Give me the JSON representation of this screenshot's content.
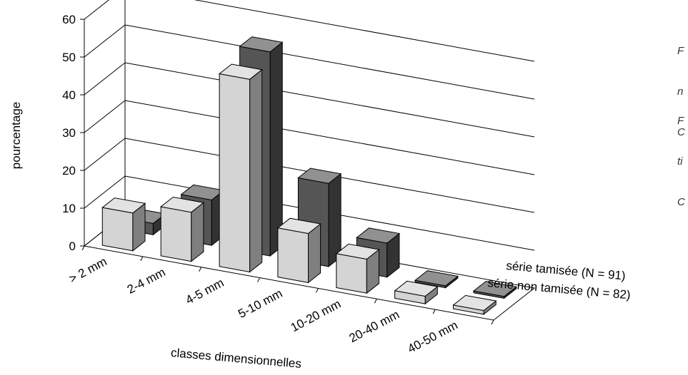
{
  "chart_data": {
    "type": "bar",
    "xlabel": "classes dimensionnelles",
    "ylabel": "pourcentage",
    "ylim": [
      0,
      60
    ],
    "yticks": [
      0,
      10,
      20,
      30,
      40,
      50,
      60
    ],
    "categories": [
      "> 2 mm",
      "2-4 mm",
      "4-5 mm",
      "5-10 mm",
      "10-20 mm",
      "20-40 mm",
      "40-50 mm"
    ],
    "series": [
      {
        "name": "série tamisée (N = 91)",
        "values": [
          3,
          12,
          54,
          22,
          9,
          0.5,
          0.5
        ],
        "color": "#555555"
      },
      {
        "name": "série non tamisée (N = 82)",
        "values": [
          10,
          13,
          51,
          13,
          9,
          2,
          1
        ],
        "color": "#d4d4d4"
      }
    ],
    "grid": true,
    "view": "3d"
  },
  "side_note": {
    "lines_a": [
      "F",
      "n",
      "C"
    ],
    "lines_b": [
      "F",
      "ti",
      "C"
    ]
  }
}
